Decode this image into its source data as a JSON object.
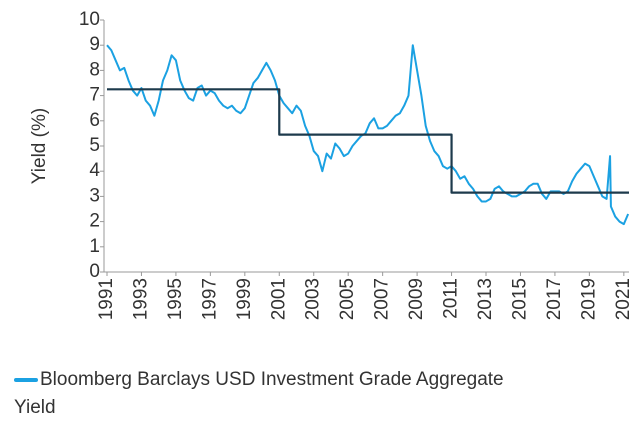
{
  "chart_data": {
    "type": "line",
    "y_label": "Yield (%)",
    "xlim": [
      1991,
      2021.3
    ],
    "ylim": [
      0,
      10
    ],
    "xticks": [
      1991,
      1993,
      1995,
      1997,
      1999,
      2001,
      2003,
      2005,
      2007,
      2009,
      2011,
      2013,
      2015,
      2017,
      2019,
      2021
    ],
    "yticks": [
      0,
      1,
      2,
      3,
      4,
      5,
      6,
      7,
      8,
      9,
      10
    ],
    "legend": "bottom-left",
    "series": [
      {
        "name": "Bloomberg Barclays USD Investment Grade Aggregate Yield",
        "color": "#1ba1e2",
        "x": [
          1991,
          1991.25,
          1991.5,
          1991.75,
          1992,
          1992.25,
          1992.5,
          1992.75,
          1993,
          1993.25,
          1993.5,
          1993.75,
          1994,
          1994.25,
          1994.5,
          1994.75,
          1995,
          1995.25,
          1995.5,
          1995.75,
          1996,
          1996.25,
          1996.5,
          1996.75,
          1997,
          1997.25,
          1997.5,
          1997.75,
          1998,
          1998.25,
          1998.5,
          1998.75,
          1999,
          1999.25,
          1999.5,
          1999.75,
          2000,
          2000.25,
          2000.5,
          2000.75,
          2001,
          2001.25,
          2001.5,
          2001.75,
          2002,
          2002.25,
          2002.5,
          2002.75,
          2003,
          2003.25,
          2003.5,
          2003.75,
          2004,
          2004.25,
          2004.5,
          2004.75,
          2005,
          2005.25,
          2005.5,
          2005.75,
          2006,
          2006.25,
          2006.5,
          2006.75,
          2007,
          2007.25,
          2007.5,
          2007.75,
          2008,
          2008.25,
          2008.5,
          2008.75,
          2009,
          2009.25,
          2009.5,
          2009.75,
          2010,
          2010.25,
          2010.5,
          2010.75,
          2011,
          2011.25,
          2011.5,
          2011.75,
          2012,
          2012.25,
          2012.5,
          2012.75,
          2013,
          2013.25,
          2013.5,
          2013.75,
          2014,
          2014.25,
          2014.5,
          2014.75,
          2015,
          2015.25,
          2015.5,
          2015.75,
          2016,
          2016.25,
          2016.5,
          2016.75,
          2017,
          2017.25,
          2017.5,
          2017.75,
          2018,
          2018.25,
          2018.5,
          2018.75,
          2019,
          2019.25,
          2019.5,
          2019.75,
          2020,
          2020.2,
          2020.25,
          2020.5,
          2020.75,
          2021,
          2021.25
        ],
        "values": [
          9.0,
          8.8,
          8.4,
          8.0,
          8.1,
          7.6,
          7.2,
          7.0,
          7.3,
          6.8,
          6.6,
          6.2,
          6.8,
          7.6,
          8.0,
          8.6,
          8.4,
          7.6,
          7.2,
          6.9,
          6.8,
          7.3,
          7.4,
          7.0,
          7.2,
          7.1,
          6.8,
          6.6,
          6.5,
          6.6,
          6.4,
          6.3,
          6.5,
          7.0,
          7.5,
          7.7,
          8.0,
          8.3,
          8.0,
          7.6,
          7.0,
          6.7,
          6.5,
          6.3,
          6.6,
          6.4,
          5.8,
          5.4,
          4.8,
          4.6,
          4.0,
          4.7,
          4.5,
          5.1,
          4.9,
          4.6,
          4.7,
          5.0,
          5.2,
          5.4,
          5.5,
          5.9,
          6.1,
          5.7,
          5.7,
          5.8,
          6.0,
          6.2,
          6.3,
          6.6,
          7.0,
          9.0,
          8.0,
          7.0,
          5.8,
          5.2,
          4.8,
          4.6,
          4.2,
          4.1,
          4.2,
          4.0,
          3.7,
          3.8,
          3.5,
          3.3,
          3.0,
          2.8,
          2.8,
          2.9,
          3.3,
          3.4,
          3.2,
          3.1,
          3.0,
          3.0,
          3.1,
          3.2,
          3.4,
          3.5,
          3.5,
          3.1,
          2.9,
          3.2,
          3.2,
          3.2,
          3.1,
          3.2,
          3.6,
          3.9,
          4.1,
          4.3,
          4.2,
          3.8,
          3.4,
          3.0,
          2.9,
          4.6,
          2.6,
          2.2,
          2.0,
          1.9,
          2.3
        ]
      },
      {
        "color": "#1d3a4c",
        "x": [
          1991,
          2001,
          2001,
          2011,
          2011,
          2021.3
        ],
        "values": [
          7.25,
          7.25,
          5.45,
          5.45,
          3.15,
          3.15
        ]
      }
    ]
  }
}
